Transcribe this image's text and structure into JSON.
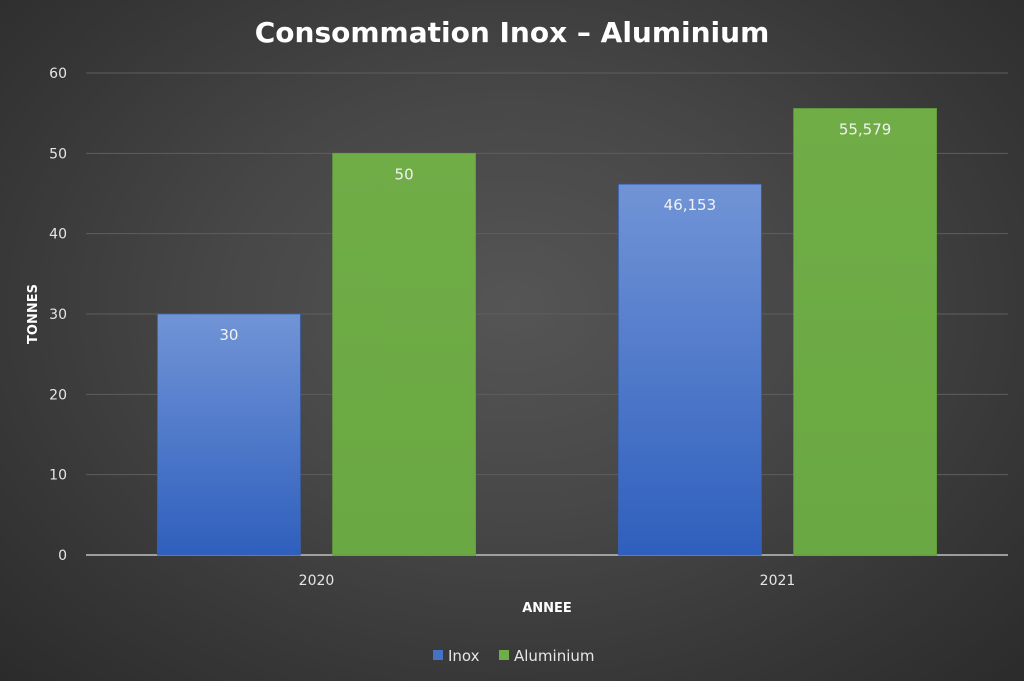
{
  "chart_data": {
    "type": "bar",
    "title": "Consommation Inox – Aluminium",
    "xlabel": "ANNEE",
    "ylabel": "TONNES",
    "categories": [
      "2020",
      "2021"
    ],
    "series": [
      {
        "name": "Inox",
        "values": [
          30,
          46.153
        ],
        "labels": [
          "30",
          "46,153"
        ],
        "color": "#4472c4"
      },
      {
        "name": "Aluminium",
        "values": [
          50,
          55.579
        ],
        "labels": [
          "50",
          "55,579"
        ],
        "color": "#70ad47"
      }
    ],
    "ylim": [
      0,
      60
    ],
    "yticks": [
      0,
      10,
      20,
      30,
      40,
      50,
      60
    ],
    "grid": true,
    "legend_position": "bottom"
  }
}
